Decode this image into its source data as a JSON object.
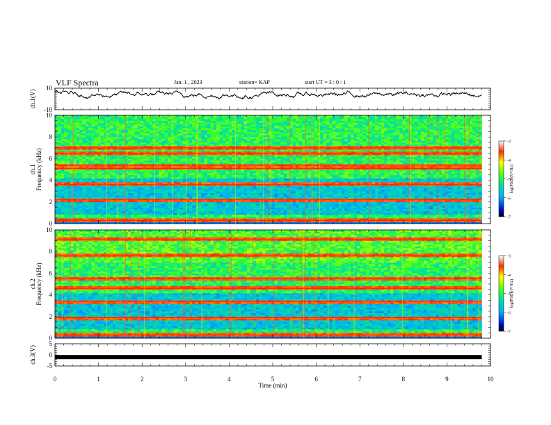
{
  "header": {
    "title": "VLF Spectra",
    "date": "Jan. 1 , 2023",
    "station": "station= KAP",
    "start": "start UT = 3 : 0 : 1"
  },
  "chart_data": [
    {
      "type": "line",
      "panel": "ch1-waveform",
      "ylabel": "ch.1(V)",
      "ylim": [
        -10,
        10
      ],
      "yticks": [
        "10",
        "-10"
      ],
      "xlim": [
        0,
        10
      ],
      "note_values": "waveform amplitude fluctuating roughly between -3 and 9 V over 0-9.8 min"
    },
    {
      "type": "heatmap",
      "panel": "ch1-spectrogram",
      "ylabel": "ch.1 Frequency (kHz)",
      "ylim": [
        0,
        10
      ],
      "yticks": [
        "10",
        "8",
        "6",
        "4",
        "2",
        "0"
      ],
      "xlim": [
        0,
        9.8
      ],
      "colorbar": {
        "label": "log(PSD)(V²/Hz)",
        "range": [
          -7,
          -3
        ],
        "ticks": [
          "-3",
          "-4",
          "-5",
          "-6",
          "-7"
        ]
      },
      "bands_khz": [
        0.3,
        2.2,
        3.6,
        5.1,
        5.4,
        6.5,
        7.0
      ]
    },
    {
      "type": "heatmap",
      "panel": "ch2-spectrogram",
      "ylabel": "ch.2 Frequency (kHz)",
      "ylim": [
        0,
        10
      ],
      "yticks": [
        "10",
        "8",
        "6",
        "4",
        "2",
        "0"
      ],
      "xlim": [
        0,
        9.8
      ],
      "colorbar": {
        "label": "log(PSD)(V²/Hz)",
        "range": [
          -7,
          -3
        ],
        "ticks": [
          "-3",
          "-4",
          "-5",
          "-6",
          "-7"
        ]
      },
      "bands_khz": [
        0.3,
        1.9,
        3.4,
        4.6,
        5.5,
        7.6,
        9.1
      ]
    },
    {
      "type": "line",
      "panel": "ch3-waveform",
      "ylabel": "ch.3(V)",
      "ylim": [
        -5,
        5
      ],
      "yticks": [
        "5",
        "0",
        "-5"
      ],
      "xlim": [
        0,
        10
      ],
      "x": [
        0,
        9.8
      ],
      "y": [
        -1,
        -1
      ]
    }
  ],
  "xaxis": {
    "label": "Time (min)",
    "ticks": [
      "0",
      "1",
      "2",
      "3",
      "4",
      "5",
      "6",
      "7",
      "8",
      "9",
      "10"
    ]
  }
}
